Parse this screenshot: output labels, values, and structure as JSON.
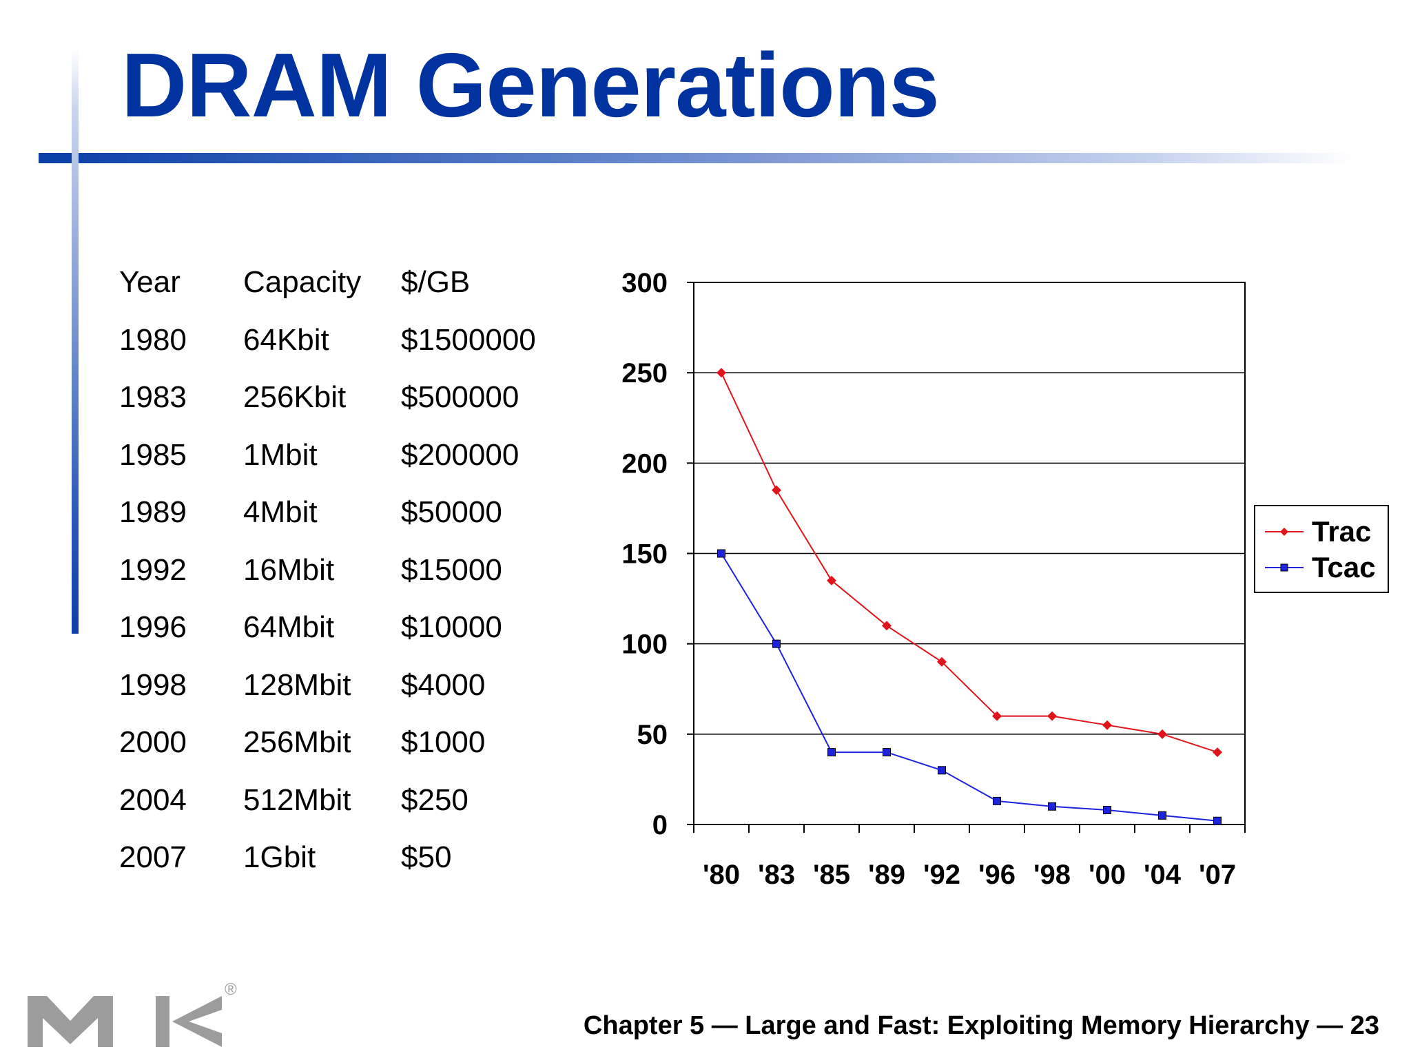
{
  "slide": {
    "title": "DRAM Generations",
    "footer": "Chapter 5 — Large and Fast: Exploiting Memory Hierarchy — 23",
    "logo_mark": "®"
  },
  "table": {
    "headers": [
      "Year",
      "Capacity",
      "$/GB"
    ],
    "rows": [
      [
        "1980",
        "64Kbit",
        "$1500000"
      ],
      [
        "1983",
        "256Kbit",
        "$500000"
      ],
      [
        "1985",
        "1Mbit",
        "$200000"
      ],
      [
        "1989",
        "4Mbit",
        "$50000"
      ],
      [
        "1992",
        "16Mbit",
        "$15000"
      ],
      [
        "1996",
        "64Mbit",
        "$10000"
      ],
      [
        "1998",
        "128Mbit",
        "$4000"
      ],
      [
        "2000",
        "256Mbit",
        "$1000"
      ],
      [
        "2004",
        "512Mbit",
        "$250"
      ],
      [
        "2007",
        "1Gbit",
        "$50"
      ]
    ]
  },
  "chart_data": {
    "type": "line",
    "categories": [
      "'80",
      "'83",
      "'85",
      "'89",
      "'92",
      "'96",
      "'98",
      "'00",
      "'04",
      "'07"
    ],
    "series": [
      {
        "name": "Trac",
        "values": [
          250,
          185,
          135,
          110,
          90,
          60,
          60,
          55,
          50,
          40
        ],
        "color": "#e0151b",
        "marker": "diamond"
      },
      {
        "name": "Tcac",
        "values": [
          150,
          100,
          40,
          40,
          30,
          13,
          10,
          8,
          5,
          2
        ],
        "color": "#1d22dd",
        "marker": "square"
      }
    ],
    "ylim": [
      0,
      300
    ],
    "yticks": [
      0,
      50,
      100,
      150,
      200,
      250,
      300
    ],
    "grid": true,
    "legend_position": "right"
  },
  "colors": {
    "title": "#0033a0",
    "accent_bar": "#0a3fa6",
    "trac": "#e0151b",
    "tcac": "#1d22dd",
    "logo": "#9c9c9c"
  }
}
